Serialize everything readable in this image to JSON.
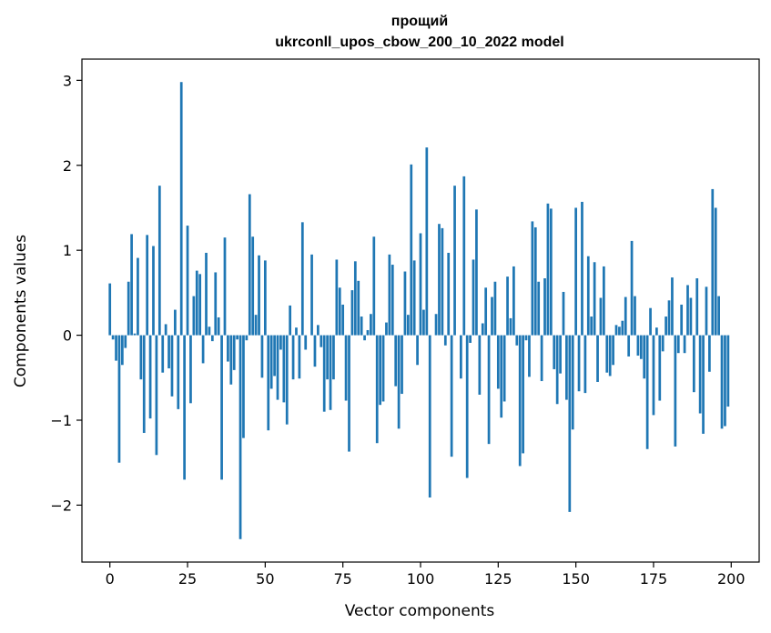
{
  "chart_data": {
    "type": "bar",
    "title": "прощий",
    "subtitle": "ukrconll_upos_cbow_200_10_2022 model",
    "xlabel": "Vector components",
    "ylabel": "Components values",
    "xlim": [
      -9,
      209
    ],
    "ylim": [
      -2.67,
      3.25
    ],
    "xticks": [
      0,
      25,
      50,
      75,
      100,
      125,
      150,
      175,
      200
    ],
    "yticks": [
      -2,
      -1,
      0,
      1,
      2,
      3
    ],
    "ytick_labels": [
      "−2",
      "−1",
      "0",
      "1",
      "2",
      "3"
    ],
    "bar_color": "#1f77b4",
    "grid": false,
    "x": [
      0,
      1,
      2,
      3,
      4,
      5,
      6,
      7,
      8,
      9,
      10,
      11,
      12,
      13,
      14,
      15,
      16,
      17,
      18,
      19,
      20,
      21,
      22,
      23,
      24,
      25,
      26,
      27,
      28,
      29,
      30,
      31,
      32,
      33,
      34,
      35,
      36,
      37,
      38,
      39,
      40,
      41,
      42,
      43,
      44,
      45,
      46,
      47,
      48,
      49,
      50,
      51,
      52,
      53,
      54,
      55,
      56,
      57,
      58,
      59,
      60,
      61,
      62,
      63,
      64,
      65,
      66,
      67,
      68,
      69,
      70,
      71,
      72,
      73,
      74,
      75,
      76,
      77,
      78,
      79,
      80,
      81,
      82,
      83,
      84,
      85,
      86,
      87,
      88,
      89,
      90,
      91,
      92,
      93,
      94,
      95,
      96,
      97,
      98,
      99,
      100,
      101,
      102,
      103,
      104,
      105,
      106,
      107,
      108,
      109,
      110,
      111,
      112,
      113,
      114,
      115,
      116,
      117,
      118,
      119,
      120,
      121,
      122,
      123,
      124,
      125,
      126,
      127,
      128,
      129,
      130,
      131,
      132,
      133,
      134,
      135,
      136,
      137,
      138,
      139,
      140,
      141,
      142,
      143,
      144,
      145,
      146,
      147,
      148,
      149,
      150,
      151,
      152,
      153,
      154,
      155,
      156,
      157,
      158,
      159,
      160,
      161,
      162,
      163,
      164,
      165,
      166,
      167,
      168,
      169,
      170,
      171,
      172,
      173,
      174,
      175,
      176,
      177,
      178,
      179,
      180,
      181,
      182,
      183,
      184,
      185,
      186,
      187,
      188,
      189,
      190,
      191,
      192,
      193,
      194,
      195,
      196,
      197,
      198,
      199
    ],
    "values": [
      0.61,
      -0.05,
      -0.3,
      -1.5,
      -0.35,
      -0.15,
      0.63,
      1.19,
      0.02,
      0.91,
      -0.52,
      -1.15,
      1.18,
      -0.98,
      1.05,
      -1.41,
      1.76,
      -0.44,
      0.13,
      -0.39,
      -0.72,
      0.3,
      -0.87,
      2.98,
      -1.7,
      1.29,
      -0.8,
      0.46,
      0.76,
      0.72,
      -0.33,
      0.97,
      0.1,
      -0.07,
      0.74,
      0.21,
      -1.7,
      1.15,
      -0.31,
      -0.58,
      -0.41,
      -0.05,
      -2.4,
      -1.21,
      -0.06,
      1.66,
      1.16,
      0.24,
      0.94,
      -0.5,
      0.88,
      -1.12,
      -0.63,
      -0.48,
      -0.76,
      -0.17,
      -0.79,
      -1.05,
      0.35,
      -0.52,
      0.09,
      -0.51,
      1.33,
      -0.17,
      0.0,
      0.95,
      -0.37,
      0.12,
      -0.14,
      -0.9,
      -0.52,
      -0.88,
      -0.52,
      0.89,
      0.56,
      0.36,
      -0.77,
      -1.37,
      0.53,
      0.87,
      0.64,
      0.22,
      -0.06,
      0.06,
      0.25,
      1.16,
      -1.27,
      -0.82,
      -0.78,
      0.15,
      0.95,
      0.83,
      -0.6,
      -1.1,
      -0.69,
      0.75,
      0.24,
      2.01,
      0.88,
      -0.35,
      1.2,
      0.3,
      2.21,
      -1.91,
      0.0,
      0.25,
      1.31,
      1.26,
      -0.12,
      0.97,
      -1.43,
      1.76,
      0.0,
      -0.51,
      1.87,
      -1.68,
      -0.09,
      0.89,
      1.48,
      -0.7,
      0.14,
      0.56,
      -1.28,
      0.45,
      0.63,
      -0.63,
      -0.97,
      -0.78,
      0.69,
      0.2,
      0.81,
      -0.12,
      -1.54,
      -1.39,
      -0.06,
      -0.49,
      1.34,
      1.27,
      0.63,
      -0.54,
      0.67,
      1.55,
      1.49,
      -0.4,
      -0.81,
      -0.45,
      0.51,
      -0.76,
      -2.08,
      -1.11,
      1.5,
      -0.66,
      1.57,
      -0.68,
      0.93,
      0.22,
      0.86,
      -0.55,
      0.44,
      0.81,
      -0.44,
      -0.48,
      -0.35,
      0.12,
      0.1,
      0.17,
      0.45,
      -0.25,
      1.11,
      0.46,
      -0.24,
      -0.28,
      -0.51,
      -1.34,
      0.32,
      -0.94,
      0.09,
      -0.77,
      -0.19,
      0.22,
      0.41,
      0.68,
      -1.31,
      -0.21,
      0.36,
      -0.21,
      0.59,
      0.44,
      -0.67,
      0.67,
      -0.92,
      -1.16,
      0.57,
      -0.43,
      1.72,
      1.5,
      0.46,
      -1.1,
      -1.07,
      -0.84
    ]
  }
}
